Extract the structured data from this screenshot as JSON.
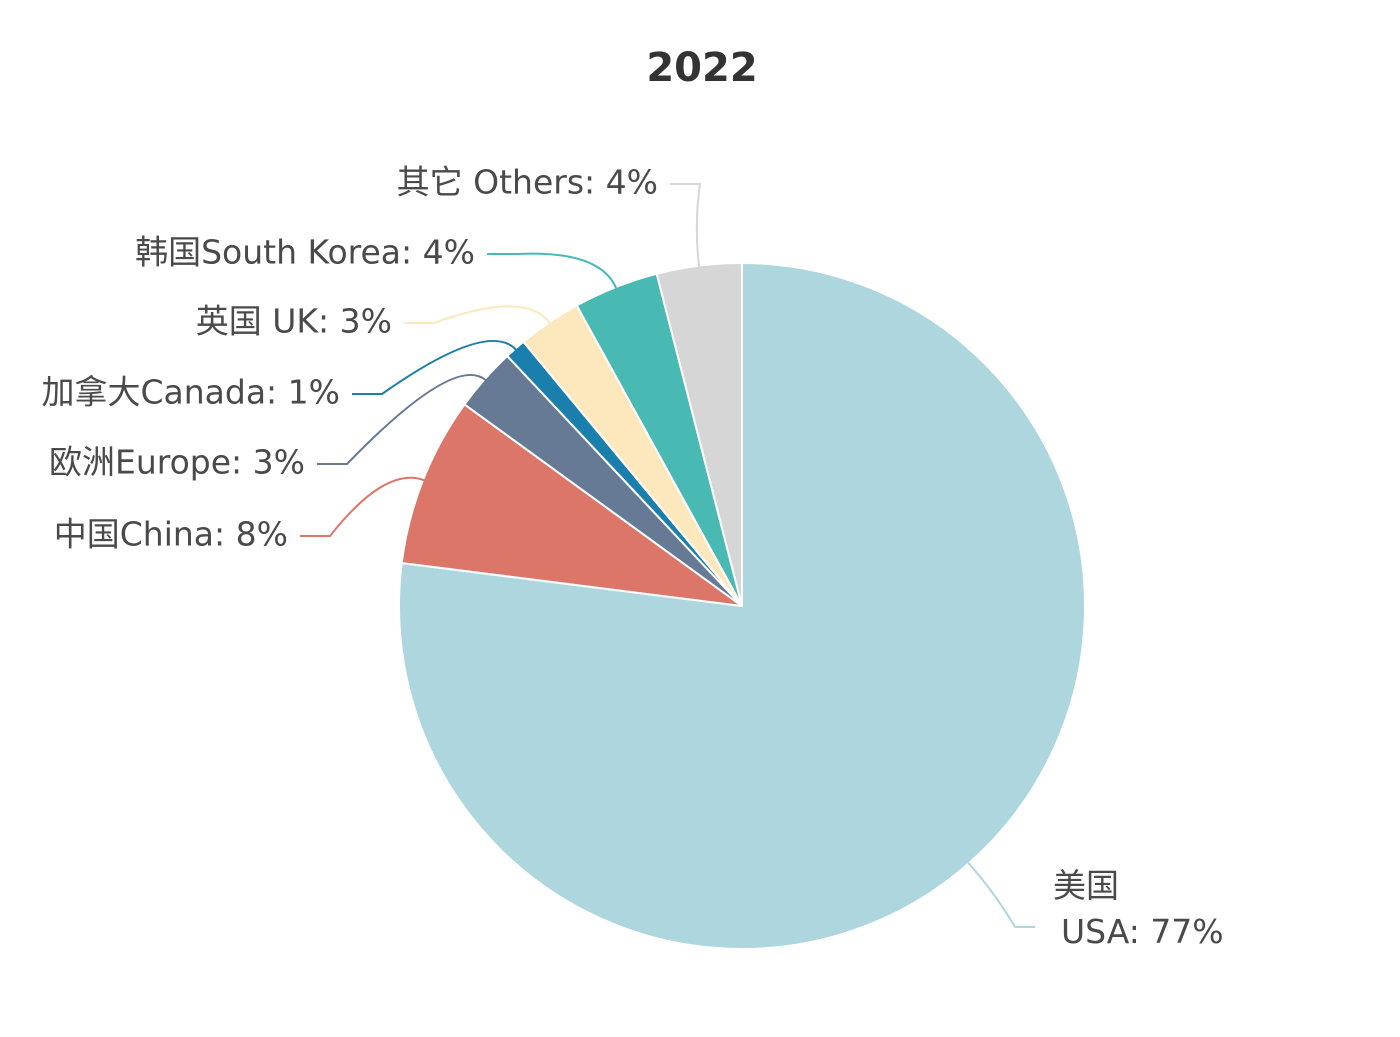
{
  "chart_data": {
    "type": "pie",
    "title": "2022",
    "labels": [
      "美国\nUSA: 77%",
      "中国China: 8%",
      "欧洲Europe: 3%",
      "加拿大Canada: 1%",
      "英国 UK: 3%",
      "韩国South Korea: 4%",
      "其它 Others: 4%"
    ],
    "values": [
      77,
      8,
      3,
      1,
      3,
      4,
      4
    ],
    "colors": [
      "#aed6df",
      "#dc7669",
      "#667995",
      "#1b7fae",
      "#fde8be",
      "#48b9b3",
      "#d6d6d6"
    ]
  }
}
